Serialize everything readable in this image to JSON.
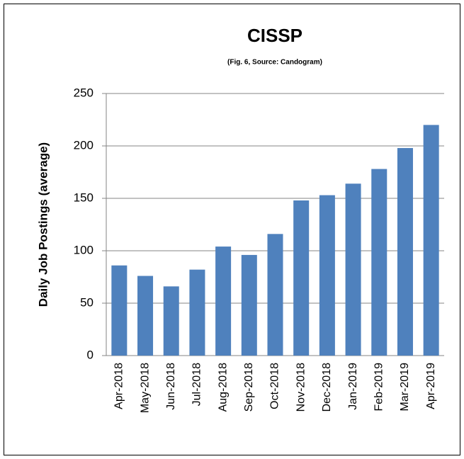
{
  "chart_data": {
    "type": "bar",
    "title": "CISSP",
    "subtitle": "(Fig. 6, Source: Candogram)",
    "y_label": "Daily Job Postings (average)",
    "categories": [
      "Apr-2018",
      "May-2018",
      "Jun-2018",
      "Jul-2018",
      "Aug-2018",
      "Sep-2018",
      "Oct-2018",
      "Nov-2018",
      "Dec-2018",
      "Jan-2019",
      "Feb-2019",
      "Mar-2019",
      "Apr-2019"
    ],
    "values": [
      86,
      76,
      66,
      82,
      104,
      96,
      116,
      148,
      153,
      164,
      178,
      198,
      220
    ],
    "color": "#4f81bd",
    "ylim": [
      0,
      250
    ],
    "yticks": [
      0,
      50,
      100,
      150,
      200,
      250
    ],
    "grid": true
  }
}
